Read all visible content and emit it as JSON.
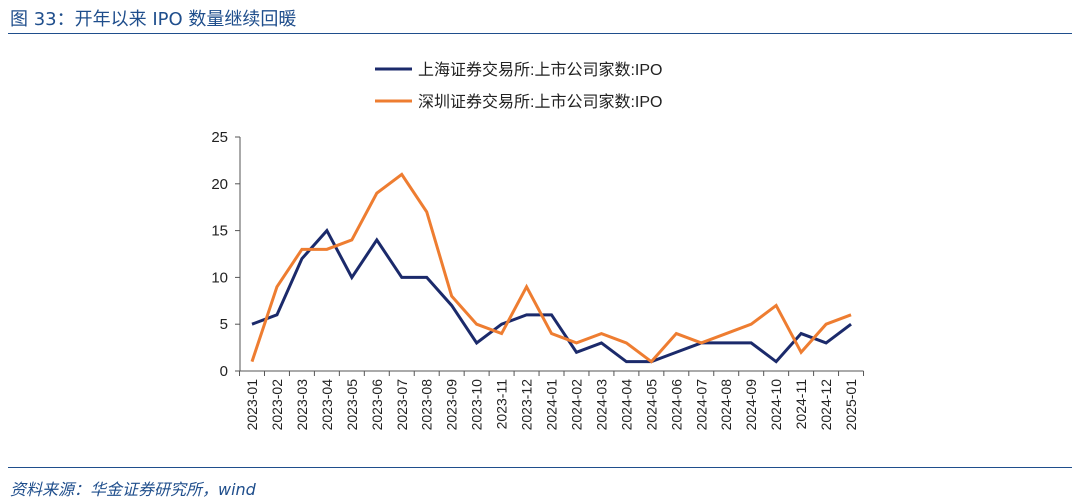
{
  "figure": {
    "title": "图 33：开年以来 IPO 数量继续回暖",
    "source": "资料来源：华金证券研究所，wind"
  },
  "colors": {
    "header_rule": "#1f4e8c",
    "series_sh": "#1b2a6b",
    "series_sz": "#ee7d31",
    "axis": "#555555"
  },
  "chart_data": {
    "type": "line",
    "title": "",
    "xlabel": "",
    "ylabel": "",
    "ylim": [
      0,
      25
    ],
    "yticks": [
      0,
      5,
      10,
      15,
      20,
      25
    ],
    "grid": false,
    "legend_position": "top-center",
    "categories": [
      "2023-01",
      "2023-02",
      "2023-03",
      "2023-04",
      "2023-05",
      "2023-06",
      "2023-07",
      "2023-08",
      "2023-09",
      "2023-10",
      "2023-11",
      "2023-12",
      "2024-01",
      "2024-02",
      "2024-03",
      "2024-04",
      "2024-05",
      "2024-06",
      "2024-07",
      "2024-08",
      "2024-09",
      "2024-10",
      "2024-11",
      "2024-12",
      "2025-01"
    ],
    "series": [
      {
        "name": "上海证券交易所:上市公司家数:IPO",
        "values": [
          5,
          6,
          12,
          15,
          10,
          14,
          10,
          10,
          7,
          3,
          5,
          6,
          6,
          2,
          3,
          1,
          1,
          2,
          3,
          3,
          3,
          1,
          4,
          3,
          5
        ]
      },
      {
        "name": "深圳证券交易所:上市公司家数:IPO",
        "values": [
          1,
          9,
          13,
          13,
          14,
          19,
          21,
          17,
          8,
          5,
          4,
          9,
          4,
          3,
          4,
          3,
          1,
          4,
          3,
          4,
          5,
          7,
          2,
          5,
          6
        ]
      }
    ]
  }
}
